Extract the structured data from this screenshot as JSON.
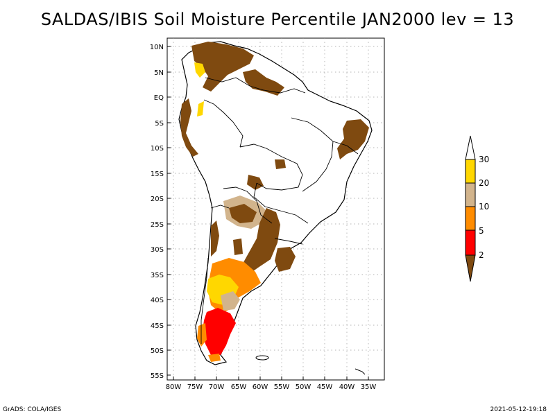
{
  "title": "SALDAS/IBIS Soil Moisture Percentile JAN2000 lev = 13",
  "footer": {
    "left": "GrADS: COLA/IGES",
    "right": "2021-05-12-19:18"
  },
  "axes": {
    "lat_labels": [
      "10N",
      "5N",
      "EQ",
      "5S",
      "10S",
      "15S",
      "20S",
      "25S",
      "30S",
      "35S",
      "40S",
      "45S",
      "50S",
      "55S"
    ],
    "lon_labels": [
      "80W",
      "75W",
      "70W",
      "65W",
      "60W",
      "55W",
      "50W",
      "45W",
      "40W",
      "35W"
    ],
    "lat_range": [
      -56,
      11
    ],
    "lon_range": [
      -81,
      -34
    ],
    "grid": true
  },
  "legend": {
    "labels": [
      "2",
      "5",
      "10",
      "20",
      "30"
    ],
    "colors": {
      "lt2": "#7f4a10",
      "2-5": "#ff0000",
      "5-10": "#ff8c00",
      "10-20": "#d2b48c",
      "20-30": "#ffd700",
      "gt30": "#ffffff"
    }
  }
}
